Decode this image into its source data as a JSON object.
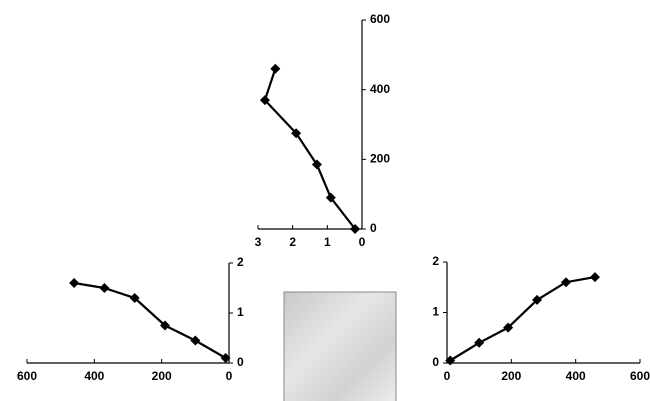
{
  "chart_data": [
    {
      "type": "line",
      "x": [
        0.2,
        0.9,
        1.3,
        1.9,
        2.8,
        2.5
      ],
      "values": [
        0,
        90,
        185,
        275,
        370,
        460
      ],
      "xlim": [
        3,
        0
      ],
      "ylim": [
        0,
        600
      ],
      "xticks": [
        3,
        2,
        1,
        0
      ],
      "yticks": [
        0,
        200,
        400,
        600
      ],
      "color": "#000000"
    },
    {
      "type": "line",
      "x": [
        10,
        100,
        190,
        280,
        370,
        460
      ],
      "values": [
        0.1,
        0.45,
        0.75,
        1.3,
        1.5,
        1.6
      ],
      "xlim": [
        600,
        0
      ],
      "ylim": [
        0,
        2
      ],
      "xticks": [
        600,
        400,
        200,
        0
      ],
      "yticks": [
        0,
        1,
        2
      ],
      "color": "#000000"
    },
    {
      "type": "line",
      "x": [
        10,
        100,
        190,
        280,
        370,
        460
      ],
      "values": [
        0.05,
        0.4,
        0.7,
        1.25,
        1.6,
        1.7
      ],
      "xlim": [
        0,
        600
      ],
      "ylim": [
        0,
        2
      ],
      "xticks": [
        0,
        200,
        400,
        600
      ],
      "yticks": [
        0,
        1,
        2
      ],
      "color": "#000000"
    }
  ]
}
